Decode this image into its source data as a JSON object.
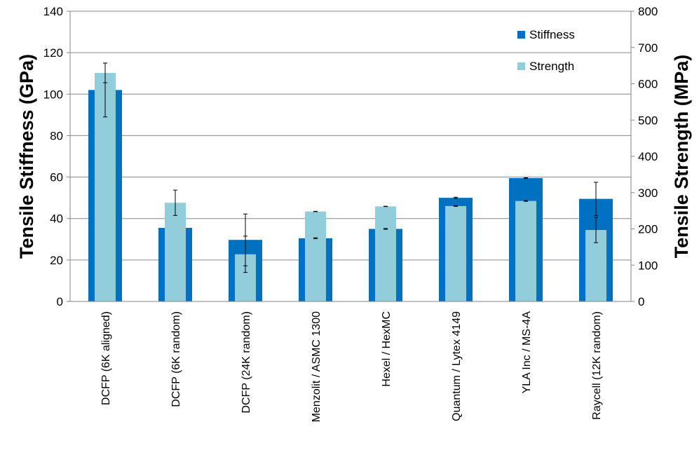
{
  "chart_data": {
    "type": "bar",
    "categories": [
      "DCFP (6K aligned)",
      "DCFP (6K random)",
      "DCFP (24K random)",
      "Menzolit / ASMC 1300",
      "Hexel / HexMC",
      "Quantum / Lytex 4149",
      "YLA Inc  / MS-4A",
      "Raycell (12K random)"
    ],
    "series": [
      {
        "name": "Stiffness",
        "axis": "left",
        "color": "#0070C0",
        "values": [
          102,
          35.5,
          29.7,
          30.5,
          35,
          50,
          59.5,
          49.5
        ],
        "error": [
          13,
          0,
          12.5,
          0.2,
          0.2,
          0.3,
          0.2,
          8
        ]
      },
      {
        "name": "Strength",
        "axis": "right",
        "color": "#92CDDC",
        "values": [
          630,
          272,
          130,
          248,
          262,
          263,
          277,
          197
        ],
        "error": [
          27,
          35,
          50,
          0.5,
          0.5,
          1,
          1,
          35
        ]
      }
    ],
    "ylabel": "Tensile Stiffness (GPa)",
    "ylabel_right": "Tensile Strength (MPa)",
    "ylim": [
      0,
      140
    ],
    "ylim_right": [
      0,
      800
    ],
    "yticks": [
      0,
      20,
      40,
      60,
      80,
      100,
      120,
      140
    ],
    "yticks_right": [
      0,
      100,
      200,
      300,
      400,
      500,
      600,
      700,
      800
    ],
    "grid": true,
    "legend_position": "top-right"
  }
}
